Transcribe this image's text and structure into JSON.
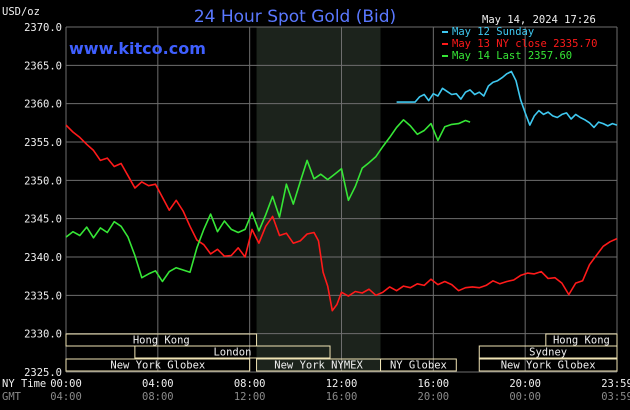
{
  "header": {
    "title": "24 Hour Spot Gold (Bid)",
    "unit": "USD/oz",
    "timestamp": "May 14, 2024 17:26",
    "brand": "www.kitco.com"
  },
  "colors": {
    "background": "#000000",
    "grid": "#6e6e6e",
    "session_shade": "#1c231c",
    "may12": "#3fc8f0",
    "may13": "#ff1a1a",
    "may14": "#36e636",
    "market_bar": "#efe3b4"
  },
  "chart_data": {
    "type": "line",
    "title": "24 Hour Spot Gold (Bid)",
    "ylabel": "USD/oz",
    "ylim": [
      2325,
      2370
    ],
    "yticks": [
      "2325.0",
      "2330.0",
      "2335.0",
      "2340.0",
      "2345.0",
      "2350.0",
      "2355.0",
      "2360.0",
      "2365.0",
      "2370.0"
    ],
    "x_hours_range": [
      0,
      24
    ],
    "x_ticks_ny": [
      "00:00",
      "04:00",
      "08:00",
      "12:00",
      "16:00",
      "20:00",
      "23:59"
    ],
    "x_ticks_gmt": [
      "04:00",
      "08:00",
      "12:00",
      "16:00",
      "20:00",
      "00:00",
      "03:59"
    ],
    "row_labels": {
      "ny": "NY Time",
      "gmt": "GMT"
    },
    "grid": true,
    "legend_position": "top-right",
    "series": [
      {
        "name": "May 12 Sunday",
        "color": "#3fc8f0",
        "x": [
          14.4,
          14.8,
          15.2,
          15.4,
          15.6,
          15.8,
          16.0,
          16.2,
          16.4,
          16.6,
          16.8,
          17.0,
          17.2,
          17.4,
          17.6,
          17.8,
          18.0,
          18.2,
          18.4,
          18.6,
          18.8,
          19.0,
          19.2,
          19.4,
          19.6,
          19.8,
          20.0,
          20.2,
          20.4,
          20.6,
          20.8,
          21.0,
          21.2,
          21.4,
          21.6,
          21.8,
          22.0,
          22.2,
          22.4,
          22.6,
          22.8,
          23.0,
          23.2,
          23.4,
          23.6,
          23.8,
          24.0
        ],
        "y": [
          2360.2,
          2360.2,
          2360.2,
          2360.9,
          2361.2,
          2360.4,
          2361.3,
          2361.0,
          2362.0,
          2361.6,
          2361.2,
          2361.3,
          2360.6,
          2361.5,
          2361.8,
          2361.2,
          2361.5,
          2361.0,
          2362.3,
          2362.8,
          2363.0,
          2363.4,
          2363.9,
          2364.2,
          2363.0,
          2360.5,
          2358.8,
          2357.2,
          2358.4,
          2359.1,
          2358.6,
          2358.9,
          2358.4,
          2358.2,
          2358.6,
          2358.8,
          2358.0,
          2358.6,
          2358.2,
          2357.9,
          2357.5,
          2356.9,
          2357.6,
          2357.4,
          2357.1,
          2357.4,
          2357.2
        ]
      },
      {
        "name": "May 13 NY close 2335.70",
        "color": "#ff1a1a",
        "x": [
          0.0,
          0.3,
          0.6,
          0.9,
          1.2,
          1.5,
          1.8,
          2.1,
          2.4,
          2.7,
          3.0,
          3.3,
          3.6,
          3.9,
          4.2,
          4.5,
          4.8,
          5.1,
          5.4,
          5.7,
          6.0,
          6.3,
          6.6,
          6.9,
          7.2,
          7.5,
          7.8,
          8.1,
          8.4,
          8.7,
          9.0,
          9.3,
          9.6,
          9.9,
          10.2,
          10.5,
          10.8,
          11.0,
          11.2,
          11.4,
          11.6,
          11.8,
          12.0,
          12.3,
          12.6,
          12.9,
          13.2,
          13.5,
          13.8,
          14.1,
          14.4,
          14.7,
          15.0,
          15.3,
          15.6,
          15.9,
          16.2,
          16.5,
          16.8,
          17.1,
          17.4,
          17.7,
          18.0,
          18.3,
          18.6,
          18.9,
          19.2,
          19.5,
          19.8,
          20.1,
          20.4,
          20.7,
          21.0,
          21.3,
          21.6,
          21.9,
          22.2,
          22.5,
          22.8,
          23.1,
          23.4,
          23.7,
          24.0
        ],
        "y": [
          2357.2,
          2356.3,
          2355.6,
          2354.7,
          2353.9,
          2352.6,
          2352.9,
          2351.8,
          2352.2,
          2350.6,
          2349.0,
          2349.8,
          2349.3,
          2349.5,
          2347.8,
          2346.1,
          2347.4,
          2346.0,
          2344.0,
          2342.2,
          2341.6,
          2340.4,
          2341.0,
          2340.1,
          2340.2,
          2341.2,
          2340.0,
          2343.6,
          2341.8,
          2344.0,
          2345.3,
          2342.8,
          2343.1,
          2341.8,
          2342.1,
          2343.0,
          2343.2,
          2342.1,
          2338.0,
          2336.2,
          2333.0,
          2333.8,
          2335.4,
          2334.9,
          2335.5,
          2335.3,
          2335.8,
          2335.0,
          2335.4,
          2336.1,
          2335.6,
          2336.2,
          2336.0,
          2336.5,
          2336.3,
          2337.1,
          2336.4,
          2336.8,
          2336.4,
          2335.6,
          2336.0,
          2336.1,
          2336.0,
          2336.3,
          2336.9,
          2336.5,
          2336.8,
          2337.0,
          2337.6,
          2337.9,
          2337.8,
          2338.1,
          2337.2,
          2337.3,
          2336.6,
          2335.1,
          2336.6,
          2336.9,
          2339.0,
          2340.2,
          2341.4,
          2342.0,
          2342.4
        ]
      },
      {
        "name": "May 14 Last 2357.60",
        "color": "#36e636",
        "x": [
          0.0,
          0.3,
          0.6,
          0.9,
          1.2,
          1.5,
          1.8,
          2.1,
          2.4,
          2.7,
          3.0,
          3.3,
          3.6,
          3.9,
          4.2,
          4.5,
          4.8,
          5.1,
          5.4,
          5.7,
          6.0,
          6.3,
          6.6,
          6.9,
          7.2,
          7.5,
          7.8,
          8.1,
          8.4,
          8.7,
          9.0,
          9.3,
          9.6,
          9.9,
          10.2,
          10.5,
          10.8,
          11.1,
          11.4,
          11.7,
          12.0,
          12.3,
          12.6,
          12.9,
          13.2,
          13.5,
          13.8,
          14.1,
          14.4,
          14.7,
          15.0,
          15.3,
          15.6,
          15.9,
          16.2,
          16.5,
          16.8,
          17.1,
          17.4,
          17.6
        ],
        "y": [
          2342.6,
          2343.3,
          2342.8,
          2343.9,
          2342.5,
          2343.8,
          2343.2,
          2344.6,
          2344.0,
          2342.6,
          2340.2,
          2337.3,
          2337.8,
          2338.2,
          2336.8,
          2338.1,
          2338.6,
          2338.3,
          2338.0,
          2341.2,
          2343.6,
          2345.6,
          2343.3,
          2344.7,
          2343.6,
          2343.2,
          2343.6,
          2345.8,
          2343.4,
          2345.5,
          2347.9,
          2345.2,
          2349.5,
          2346.9,
          2349.8,
          2352.6,
          2350.2,
          2350.8,
          2350.1,
          2350.8,
          2351.5,
          2347.4,
          2349.2,
          2351.6,
          2352.3,
          2353.1,
          2354.4,
          2355.6,
          2356.9,
          2357.9,
          2357.1,
          2356.0,
          2356.5,
          2357.4,
          2355.2,
          2357.0,
          2357.3,
          2357.4,
          2357.8,
          2357.6
        ]
      }
    ]
  },
  "markets": {
    "rows": [
      [
        {
          "label": "Hong Kong",
          "start": 0.0,
          "end": 8.3
        },
        {
          "label": "Hong Kong",
          "start": 20.9,
          "end": 24.0
        }
      ],
      [
        {
          "label": "London",
          "start": 3.0,
          "end": 11.5
        },
        {
          "label": "Sydney",
          "start": 18.0,
          "end": 24.0
        }
      ],
      [
        {
          "label": "New York Globex",
          "start": 0.0,
          "end": 8.0
        },
        {
          "label": "New York NYMEX",
          "start": 8.3,
          "end": 13.7
        },
        {
          "label": "NY Globex",
          "start": 13.7,
          "end": 17.0
        },
        {
          "label": "New York Globex",
          "start": 18.0,
          "end": 24.0
        }
      ]
    ],
    "session_highlight": {
      "start": 8.3,
      "end": 13.7
    }
  }
}
